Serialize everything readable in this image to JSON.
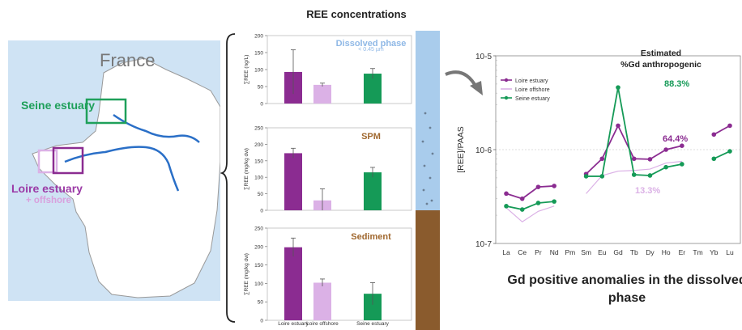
{
  "map": {
    "country": "France",
    "seine_label": "Seine estuary",
    "loire_label": "Loire estuary",
    "offshore_label": "+ offshore"
  },
  "ree_title": "REE concentrations",
  "colors": {
    "loire_estuary": "#8b2c91",
    "loire_offshore": "#dbb1e6",
    "seine_estuary": "#159a57",
    "sea": "#cfe3f4",
    "river": "#2a6fc7",
    "water_col": "#a9ccec",
    "sediment": "#8a5b2d"
  },
  "chart_data": [
    {
      "type": "bar",
      "title": "Dissolved phase",
      "subtitle": "< 0.45 µm",
      "ylabel": "∑REE (ng/L)",
      "ylim": [
        0,
        200
      ],
      "yticks": [
        0,
        50,
        100,
        150,
        200
      ],
      "categories": [
        "Loire estuary",
        "Loire offshore",
        "Seine estuary"
      ],
      "values": [
        93,
        55,
        88
      ],
      "errors": [
        65,
        5,
        15
      ]
    },
    {
      "type": "bar",
      "title": "SPM",
      "ylabel": "∑REE (mg/kg dw)",
      "ylim": [
        0,
        250
      ],
      "yticks": [
        0,
        50,
        100,
        150,
        200,
        250
      ],
      "categories": [
        "Loire estuary",
        "Loire offshore",
        "Seine estuary"
      ],
      "values": [
        173,
        30,
        115
      ],
      "errors": [
        15,
        35,
        15
      ]
    },
    {
      "type": "bar",
      "title": "Sediment",
      "ylabel": "∑REE (mg/kg dw)",
      "ylim": [
        0,
        250
      ],
      "yticks": [
        0,
        50,
        100,
        150,
        200,
        250
      ],
      "categories": [
        "Loire estuary",
        "Loire offshore",
        "Seine estuary"
      ],
      "values": [
        198,
        102,
        72
      ],
      "errors": [
        25,
        10,
        30
      ]
    },
    {
      "type": "line",
      "ylabel": "[REE]/PAAS",
      "log_scale": true,
      "ylim": [
        1e-07,
        1e-05
      ],
      "ytick_labels": [
        "10-7",
        "10-6",
        "10-5"
      ],
      "categories": [
        "La",
        "Ce",
        "Pr",
        "Nd",
        "Pm",
        "Sm",
        "Eu",
        "Gd",
        "Tb",
        "Dy",
        "Ho",
        "Er",
        "Tm",
        "Yb",
        "Lu"
      ],
      "series": [
        {
          "name": "Loire estuary",
          "values": [
            3.4e-07,
            3e-07,
            4e-07,
            4.1e-07,
            null,
            5.5e-07,
            8e-07,
            1.8e-06,
            8e-07,
            7.9e-07,
            1e-06,
            1.1e-06,
            null,
            1.45e-06,
            1.8e-06
          ]
        },
        {
          "name": "Loire offshore",
          "values": [
            2.4e-07,
            1.7e-07,
            2.2e-07,
            2.5e-07,
            null,
            3.4e-07,
            5.3e-07,
            5.9e-07,
            6e-07,
            6.2e-07,
            7.2e-07,
            7.5e-07,
            null,
            null,
            null
          ]
        },
        {
          "name": "Seine estuary",
          "values": [
            2.5e-07,
            2.3e-07,
            2.7e-07,
            2.8e-07,
            null,
            5.2e-07,
            5.2e-07,
            4.6e-06,
            5.4e-07,
            5.3e-07,
            6.5e-07,
            7e-07,
            null,
            8e-07,
            9.6e-07
          ]
        }
      ],
      "annotation_title": "Estimated\n%Gd anthropogenic",
      "annotations": [
        {
          "text": "88.3%",
          "series": "Seine estuary"
        },
        {
          "text": "64.4%",
          "series": "Loire estuary"
        },
        {
          "text": "13.3%",
          "series": "Loire offshore"
        }
      ]
    }
  ],
  "caption": "Gd positive anomalies in the dissolved phase"
}
